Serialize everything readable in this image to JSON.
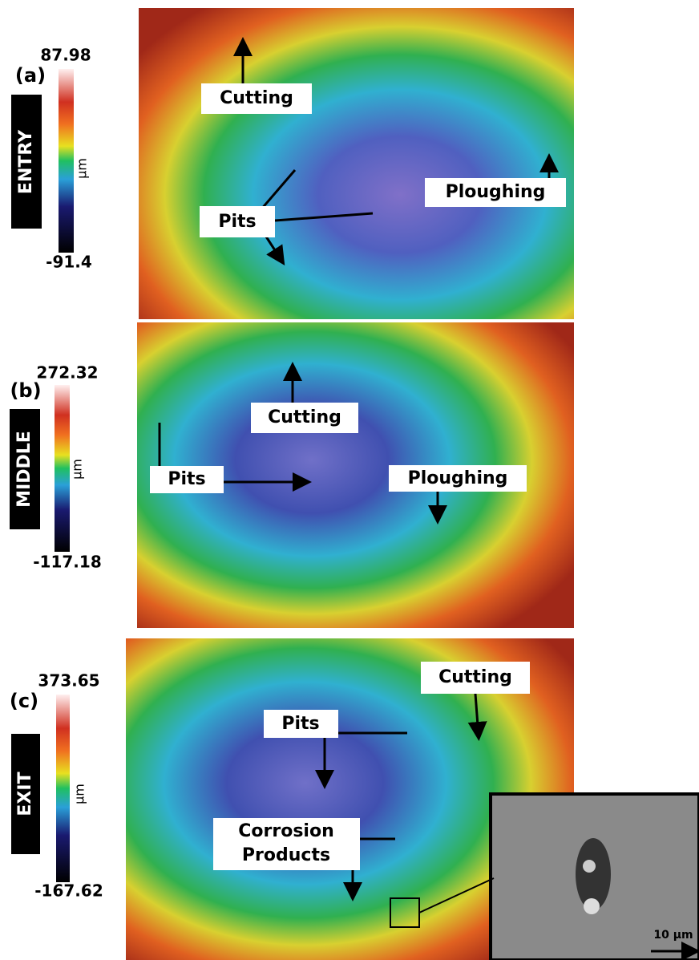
{
  "panels": [
    {
      "label": "(a)",
      "position": "ENTRY",
      "scale_max": "87.98",
      "scale_min": "-91.4",
      "unit": "µm",
      "annotations": [
        "Cutting",
        "Ploughing",
        "Pits"
      ]
    },
    {
      "label": "(b)",
      "position": "MIDDLE",
      "scale_max": "272.32",
      "scale_min": "-117.18",
      "unit": "µm",
      "annotations": [
        "Cutting",
        "Pits",
        "Ploughing"
      ]
    },
    {
      "label": "(c)",
      "position": "EXIT",
      "scale_max": "373.65",
      "scale_min": "-167.62",
      "unit": "µm",
      "annotations": [
        "Cutting",
        "Pits",
        "Corrosion",
        "Products"
      ],
      "scale_bar": "10 µm"
    }
  ]
}
